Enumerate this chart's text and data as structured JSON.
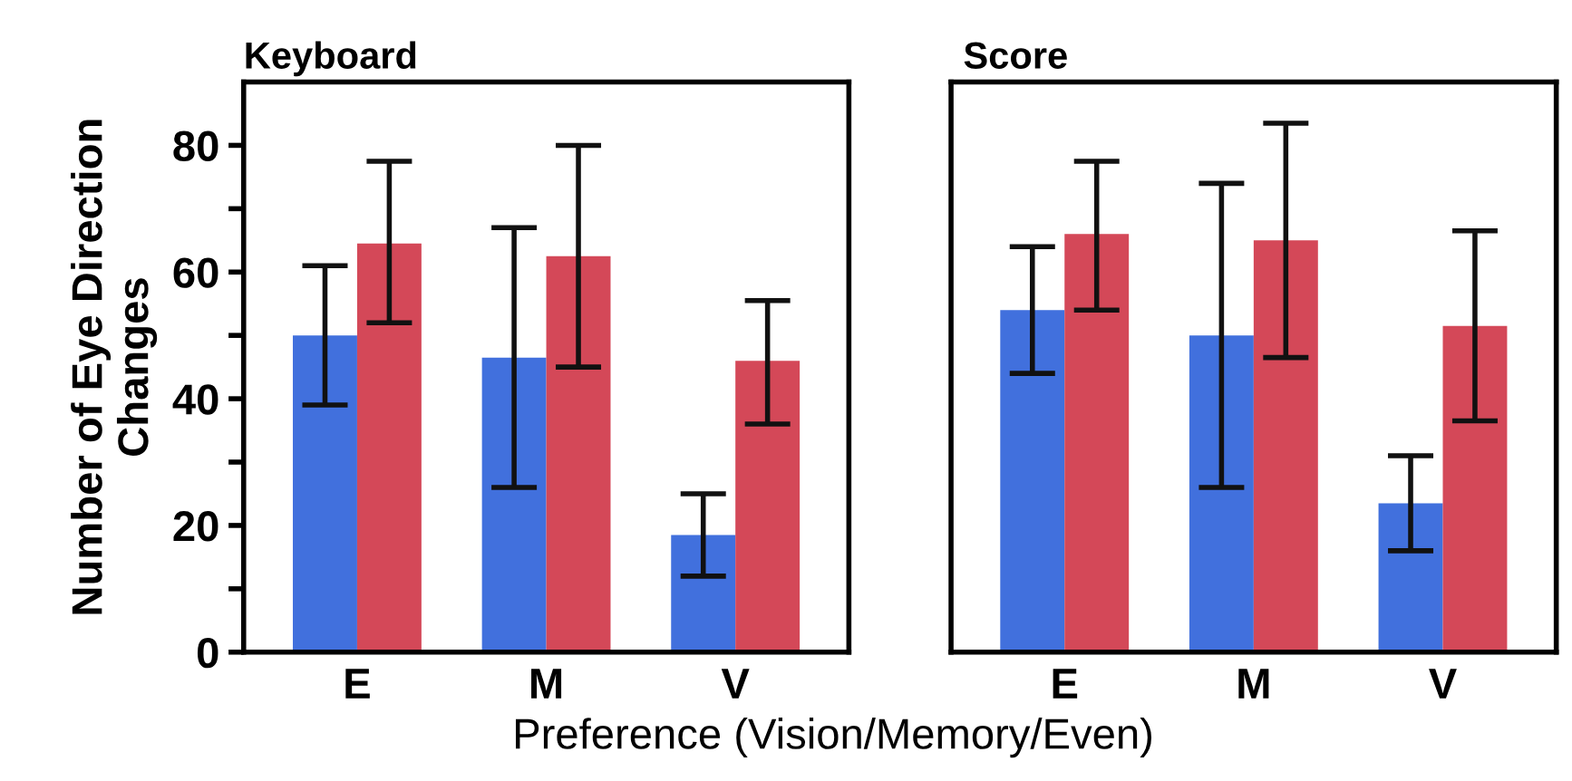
{
  "chart_data": [
    {
      "type": "bar",
      "title": "Keyboard",
      "ylabel": "Number of Eye Direction\nChanges",
      "xlabel": "Preference (Vision/Memory/Even)",
      "categories": [
        "E",
        "M",
        "V"
      ],
      "ylim": [
        0,
        90
      ],
      "yticks": [
        0,
        {
          "value": 10,
          "label": null
        },
        20,
        {
          "value": 30,
          "label": null
        },
        40,
        {
          "value": 50,
          "label": null
        },
        60,
        {
          "value": 70,
          "label": null
        },
        80
      ],
      "grid": false,
      "legend": false,
      "series": [
        {
          "color": "#4170dd",
          "values": [
            50,
            46.5,
            18.5
          ],
          "errors": [
            [
              39,
              61
            ],
            [
              26,
              67
            ],
            [
              12,
              25
            ]
          ]
        },
        {
          "color": "#d44858",
          "values": [
            64.5,
            62.5,
            46
          ],
          "errors": [
            [
              52,
              77.5
            ],
            [
              45,
              80
            ],
            [
              36,
              55.5
            ]
          ]
        }
      ]
    },
    {
      "type": "bar",
      "title": "Score",
      "categories": [
        "E",
        "M",
        "V"
      ],
      "ylim": [
        0,
        90
      ],
      "tick_labels": "x",
      "grid": false,
      "legend": false,
      "series": [
        {
          "color": "#4170dd",
          "values": [
            54,
            50,
            23.5
          ],
          "errors": [
            [
              44,
              64
            ],
            [
              26,
              74
            ],
            [
              16,
              31
            ]
          ]
        },
        {
          "color": "#d44858",
          "values": [
            66,
            65,
            51.5
          ],
          "errors": [
            [
              54,
              77.5
            ],
            [
              46.5,
              83.5
            ],
            [
              36.5,
              66.5
            ]
          ]
        }
      ]
    }
  ]
}
